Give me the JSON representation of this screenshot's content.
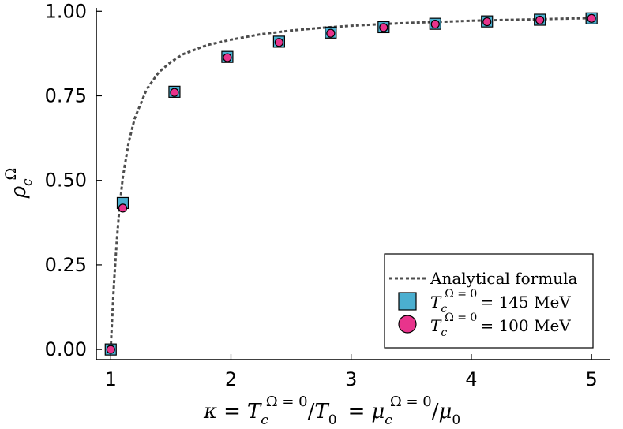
{
  "chart_data": {
    "type": "scatter",
    "title": "",
    "xlabel": {
      "kappa": "κ",
      "eq1": "=",
      "T": "T",
      "c": "c",
      "sup": "Ω = 0",
      "slash1": "/",
      "T0": "T",
      "zero": "0",
      "eq2": "=",
      "mu": "μ",
      "c2": "c",
      "sup2": "Ω = 0",
      "slash2": "/",
      "mu0": "μ",
      "zero2": "0"
    },
    "ylabel": {
      "rho": "ρ",
      "sub": "c",
      "sup": "Ω"
    },
    "xlim": [
      0.88,
      5.15
    ],
    "ylim": [
      -0.03,
      1.01
    ],
    "xticks": [
      1,
      2,
      3,
      4,
      5
    ],
    "xtick_labels": [
      "1",
      "2",
      "3",
      "4",
      "5"
    ],
    "yticks": [
      0.0,
      0.25,
      0.5,
      0.75,
      1.0
    ],
    "ytick_labels": [
      "0.00",
      "0.25",
      "0.50",
      "0.75",
      "1.00"
    ],
    "grid": false,
    "legend_position": "bottom-right",
    "series": [
      {
        "name": "Analytical formula",
        "kind": "line",
        "color": "#4d4d4d",
        "x": [
          1.0,
          1.005,
          1.01,
          1.02,
          1.03,
          1.05,
          1.07,
          1.1,
          1.15,
          1.2,
          1.3,
          1.4,
          1.5,
          1.6,
          1.8,
          2.0,
          2.25,
          2.5,
          2.75,
          3.0,
          3.25,
          3.5,
          3.75,
          4.0,
          4.25,
          4.5,
          4.75,
          5.0
        ],
        "y": [
          0.0,
          0.04,
          0.078,
          0.148,
          0.211,
          0.32,
          0.408,
          0.508,
          0.614,
          0.684,
          0.77,
          0.82,
          0.85,
          0.873,
          0.9,
          0.916,
          0.932,
          0.943,
          0.951,
          0.957,
          0.962,
          0.966,
          0.969,
          0.972,
          0.974,
          0.976,
          0.978,
          0.98
        ]
      },
      {
        "name_T": "T",
        "name_c": "c",
        "name_sup": "Ω = 0",
        "name_rest": "= 145 MeV",
        "kind": "scatter",
        "marker": "square",
        "color": "#4bafd0",
        "x": [
          1.0,
          1.1,
          1.53,
          1.97,
          2.4,
          2.83,
          3.27,
          3.7,
          4.13,
          4.57,
          5.0
        ],
        "y": [
          0.0,
          0.433,
          0.762,
          0.865,
          0.91,
          0.937,
          0.953,
          0.963,
          0.97,
          0.975,
          0.979
        ]
      },
      {
        "name_T": "T",
        "name_c": "c",
        "name_sup": "Ω = 0",
        "name_rest": "= 100 MeV",
        "kind": "scatter",
        "marker": "circle",
        "color": "#e8348c",
        "x": [
          1.0,
          1.1,
          1.53,
          1.97,
          2.4,
          2.83,
          3.27,
          3.7,
          4.13,
          4.57,
          5.0
        ],
        "y": [
          0.0,
          0.418,
          0.76,
          0.863,
          0.908,
          0.935,
          0.952,
          0.962,
          0.969,
          0.974,
          0.979
        ]
      }
    ]
  }
}
